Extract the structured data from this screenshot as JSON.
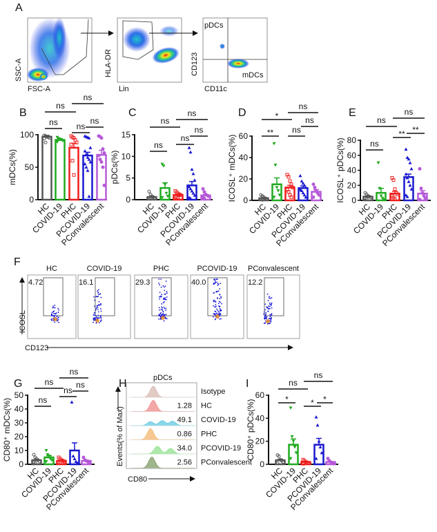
{
  "panel_letters": {
    "A": "A",
    "B": "B",
    "C": "C",
    "D": "D",
    "E": "E",
    "F": "F",
    "G": "G",
    "H": "H",
    "I": "I"
  },
  "panel_a": {
    "plot1": {
      "ylabel": "SSC-A",
      "xlabel": "FSC-A"
    },
    "plot2": {
      "ylabel": "HLA-DR",
      "xlabel": "Lin"
    },
    "plot3": {
      "ylabel": "CD123",
      "xlabel": "CD11c",
      "gate_top": "pDCs",
      "gate_bottom": "mDCs"
    }
  },
  "panel_f": {
    "ylabel": "ICOSL",
    "xlabel": "CD123",
    "plots": [
      {
        "title": "HC",
        "value": "4.72"
      },
      {
        "title": "COVID-19",
        "value": "16.1"
      },
      {
        "title": "PHC",
        "value": "29.3"
      },
      {
        "title": "PCOVID-19",
        "value": "40.0"
      },
      {
        "title": "PConvalescent",
        "value": "12.2"
      }
    ]
  },
  "panel_h": {
    "title": "pDCs",
    "ylabel": "Events(% of Max)",
    "xlabel": "CD80",
    "rows": [
      {
        "name": "Isotype",
        "value": "",
        "color": "#d8b9b2"
      },
      {
        "name": "HC",
        "value": "1.28",
        "color": "#f08a8a"
      },
      {
        "name": "COVID-19",
        "value": "49.1",
        "color": "#63c9e3"
      },
      {
        "name": "PHC",
        "value": "0.86",
        "color": "#f5b56e"
      },
      {
        "name": "PCOVID-19",
        "value": "34.0",
        "color": "#90e28e"
      },
      {
        "name": "PConvalescent",
        "value": "2.56",
        "color": "#7f9c66"
      }
    ]
  },
  "colors": {
    "HC": "#555555",
    "COVID-19": "#1faa1f",
    "PHC": "#ee1c1c",
    "PCOVID-19": "#1818d0",
    "PConvalescent": "#b65ad8"
  },
  "chart_data": [
    {
      "id": "B",
      "type": "bar",
      "ylabel": "mDCs(%)",
      "ylim": [
        0,
        100
      ],
      "yticks": [
        0,
        50,
        100
      ],
      "categories": [
        "HC",
        "COVID-19",
        "PHC",
        "PCOVID-19",
        "PConvalescent"
      ],
      "values": [
        97,
        92,
        80,
        68,
        69
      ],
      "errors": [
        2,
        2,
        7,
        5,
        7
      ],
      "points": [
        [
          99,
          98,
          97,
          96,
          95,
          94,
          88
        ],
        [
          96,
          94,
          93,
          92,
          91,
          89
        ],
        [
          98,
          96,
          95,
          92,
          88,
          85,
          60,
          38
        ],
        [
          98,
          97,
          96,
          95,
          80,
          75,
          70,
          65,
          62,
          58,
          55,
          50,
          45,
          5
        ],
        [
          98,
          97,
          95,
          78,
          72,
          68,
          62,
          58,
          50,
          22
        ]
      ],
      "comparisons": [
        {
          "from": 0,
          "to": 1,
          "label": "ns"
        },
        {
          "from": 0,
          "to": 2,
          "label": "ns"
        },
        {
          "from": 2,
          "to": 4,
          "label": "ns"
        },
        {
          "from": 2,
          "to": 3,
          "label": "ns"
        },
        {
          "from": 3,
          "to": 4,
          "label": "ns"
        }
      ]
    },
    {
      "id": "C",
      "type": "bar",
      "ylabel": "pDCs(%)",
      "ylim": [
        0,
        15
      ],
      "yticks": [
        0,
        5,
        10,
        15
      ],
      "categories": [
        "HC",
        "COVID-19",
        "PHC",
        "PCOVID-19",
        "PConvalescent"
      ],
      "values": [
        0.6,
        2.7,
        1.1,
        3.3,
        1.0
      ],
      "errors": [
        0.2,
        1.2,
        0.2,
        0.9,
        0.2
      ],
      "points": [
        [
          1.9,
          1.2,
          0.8,
          0.6,
          0.4,
          0.3,
          0.2
        ],
        [
          8.2,
          7.8,
          3.5,
          1.5,
          0.8,
          0.5
        ],
        [
          2.0,
          1.7,
          1.4,
          1.2,
          1.0,
          0.8,
          0.6,
          0.4
        ],
        [
          12,
          11,
          7,
          6,
          4.5,
          3,
          2.5,
          2,
          1.5,
          1,
          0.5,
          0.3
        ],
        [
          2.5,
          1.8,
          1.2,
          1.0,
          0.8,
          0.5,
          0.3
        ]
      ],
      "comparisons": [
        {
          "from": 0,
          "to": 1,
          "label": "ns"
        },
        {
          "from": 0,
          "to": 2,
          "label": "ns"
        },
        {
          "from": 2,
          "to": 4,
          "label": "ns"
        },
        {
          "from": 2,
          "to": 3,
          "label": "ns"
        },
        {
          "from": 3,
          "to": 4,
          "label": "ns"
        }
      ]
    },
    {
      "id": "D",
      "type": "bar",
      "ylabel": "ICOSL⁺ mDCs(%)",
      "ylim": [
        0,
        60
      ],
      "yticks": [
        0,
        20,
        40,
        60
      ],
      "categories": [
        "HC",
        "COVID-19",
        "PHC",
        "PCOVID-19",
        "PConvalescent"
      ],
      "values": [
        2,
        15,
        12,
        11.5,
        8
      ],
      "errors": [
        0.5,
        6,
        2,
        2,
        2
      ],
      "points": [
        [
          5,
          4,
          3,
          2,
          1.5,
          1,
          0.5
        ],
        [
          53,
          33,
          12,
          9,
          5,
          3
        ],
        [
          24,
          22,
          18,
          15,
          12,
          10,
          8,
          5,
          3
        ],
        [
          23,
          18,
          16,
          14,
          12,
          10,
          9,
          7,
          5,
          3
        ],
        [
          15,
          12,
          9,
          7,
          5,
          3
        ]
      ],
      "comparisons": [
        {
          "from": 0,
          "to": 1,
          "label": "**"
        },
        {
          "from": 0,
          "to": 2,
          "label": "*"
        },
        {
          "from": 2,
          "to": 4,
          "label": "ns"
        },
        {
          "from": 2,
          "to": 3,
          "label": "ns"
        },
        {
          "from": 3,
          "to": 4,
          "label": "ns"
        }
      ]
    },
    {
      "id": "E",
      "type": "bar",
      "ylabel": "ICOSL⁺ pDCs(%)",
      "ylim": [
        0,
        80
      ],
      "yticks": [
        0,
        20,
        40,
        60,
        80
      ],
      "categories": [
        "HC",
        "COVID-19",
        "PHC",
        "PCOVID-19",
        "PConvalescent"
      ],
      "values": [
        5,
        10,
        9,
        31,
        9
      ],
      "errors": [
        1,
        6,
        3,
        4,
        4
      ],
      "points": [
        [
          10,
          8,
          6,
          5,
          4,
          3,
          2
        ],
        [
          50,
          16,
          6,
          3,
          1
        ],
        [
          30,
          27,
          15,
          10,
          8,
          6,
          4,
          2
        ],
        [
          68,
          57,
          55,
          50,
          42,
          35,
          30,
          25,
          20,
          15,
          7,
          5
        ],
        [
          42,
          16,
          10,
          6,
          3,
          1
        ]
      ],
      "comparisons": [
        {
          "from": 0,
          "to": 1,
          "label": "ns"
        },
        {
          "from": 0,
          "to": 2,
          "label": "ns"
        },
        {
          "from": 2,
          "to": 4,
          "label": "ns"
        },
        {
          "from": 2,
          "to": 3,
          "label": "**"
        },
        {
          "from": 3,
          "to": 4,
          "label": "**"
        }
      ]
    },
    {
      "id": "G",
      "type": "bar",
      "ylabel": "CD80⁺ mDCs(%)",
      "ylim": [
        0,
        50
      ],
      "yticks": [
        0,
        10,
        20,
        30,
        40,
        50
      ],
      "categories": [
        "HC",
        "COVID-19",
        "PHC",
        "PCOVID-19",
        "PConvalescent"
      ],
      "values": [
        3,
        5,
        2.5,
        10,
        2.5
      ],
      "errors": [
        0.7,
        1.2,
        0.5,
        5.5,
        0.5
      ],
      "points": [
        [
          7,
          5,
          4,
          3,
          2,
          1.5,
          1
        ],
        [
          10,
          7,
          6,
          4,
          3,
          2
        ],
        [
          5,
          4,
          3,
          2.5,
          2,
          1.5,
          1
        ],
        [
          45,
          6,
          4,
          2,
          1
        ],
        [
          5,
          3,
          2.5,
          2,
          1.5
        ]
      ],
      "comparisons": [
        {
          "from": 0,
          "to": 1,
          "label": "ns"
        },
        {
          "from": 0,
          "to": 2,
          "label": "ns"
        },
        {
          "from": 2,
          "to": 4,
          "label": "ns"
        },
        {
          "from": 2,
          "to": 3,
          "label": "ns"
        },
        {
          "from": 3,
          "to": 4,
          "label": "ns"
        }
      ]
    },
    {
      "id": "I",
      "type": "bar",
      "ylabel": "CD80⁺ pDCs(%)",
      "ylim": [
        0,
        60
      ],
      "yticks": [
        0,
        20,
        40,
        60
      ],
      "categories": [
        "HC",
        "COVID-19",
        "PHC",
        "PCOVID-19",
        "PConvalescent"
      ],
      "values": [
        3.5,
        17,
        2,
        17,
        2
      ],
      "errors": [
        1,
        5,
        0.5,
        5.5,
        0.5
      ],
      "points": [
        [
          8,
          7,
          4,
          3,
          2,
          1
        ],
        [
          49,
          24,
          20,
          15,
          10,
          5
        ],
        [
          4,
          3,
          2,
          1.5,
          1,
          0.5
        ],
        [
          41,
          34,
          20,
          15,
          10,
          5
        ],
        [
          5,
          3,
          2,
          1,
          0.5
        ]
      ],
      "comparisons": [
        {
          "from": 0,
          "to": 1,
          "label": "*"
        },
        {
          "from": 0,
          "to": 2,
          "label": "ns"
        },
        {
          "from": 2,
          "to": 4,
          "label": "ns"
        },
        {
          "from": 2,
          "to": 3,
          "label": "*"
        },
        {
          "from": 3,
          "to": 4,
          "label": "*"
        }
      ]
    }
  ]
}
